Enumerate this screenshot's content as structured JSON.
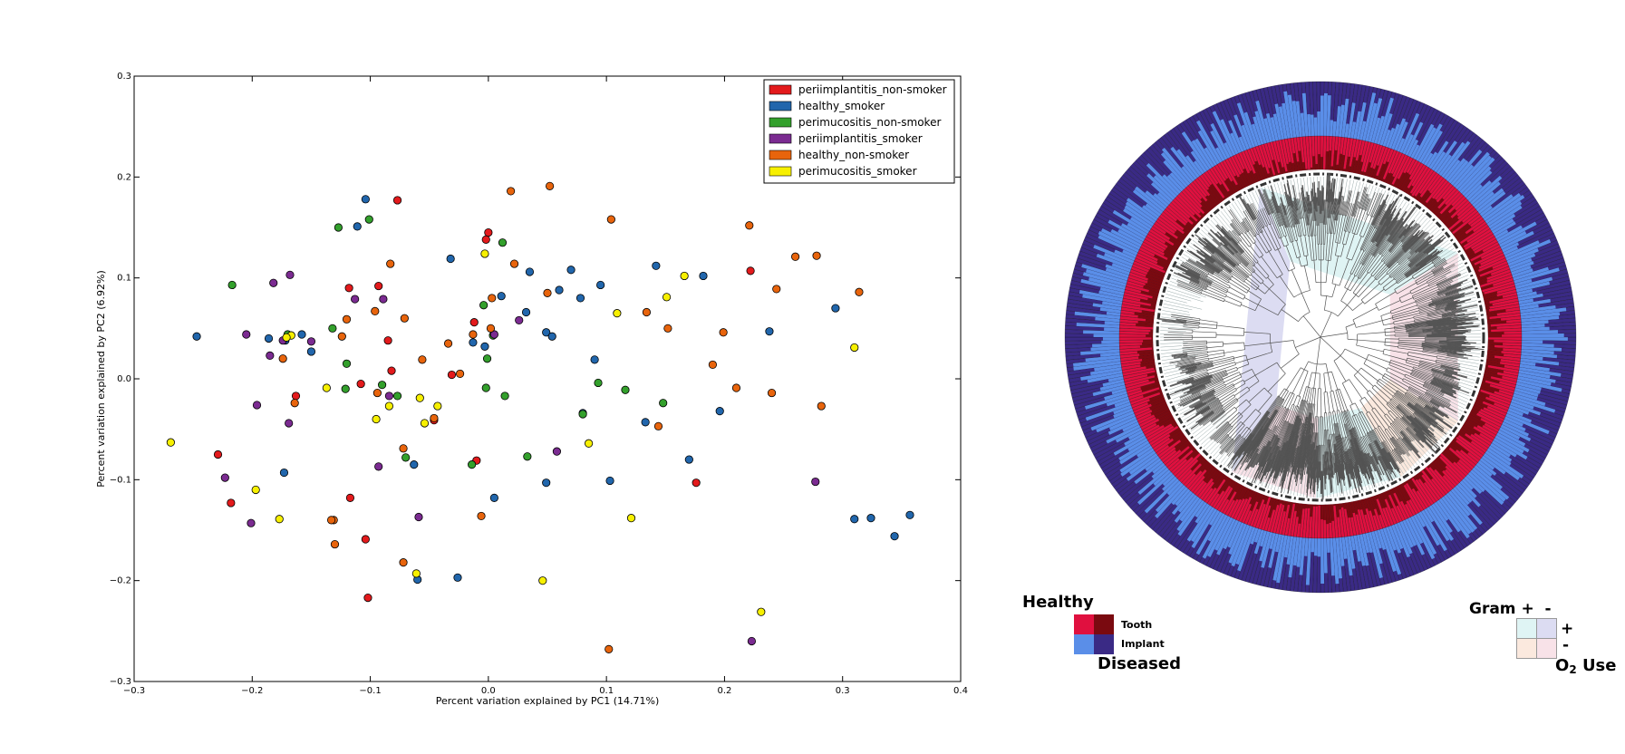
{
  "chart_data": {
    "type": "scatter",
    "xlabel": "Percent variation explained by PC1 (14.71%)",
    "ylabel": "Percent variation explained by PC2 (6.92%)",
    "xlim": [
      -0.3,
      0.4
    ],
    "ylim": [
      -0.3,
      0.3
    ],
    "xticks": [
      "−0.3",
      "−0.2",
      "−0.1",
      "0.0",
      "0.1",
      "0.2",
      "0.3",
      "0.4"
    ],
    "yticks": [
      "0.3",
      "0.2",
      "0.1",
      "0.0",
      "−0.1",
      "−0.2",
      "−0.3"
    ],
    "legend_position": "top-right",
    "series": [
      {
        "name": "periimplantitis_non-smoker",
        "color": "#e31a1c",
        "x": [
          -0.077,
          -0.118,
          -0.093,
          -0.085,
          -0.082,
          -0.108,
          -0.163,
          -0.229,
          -0.218,
          -0.117,
          -0.104,
          -0.102,
          -0.031,
          -0.046,
          -0.012,
          -0.01,
          -0.002,
          0.0,
          0.176,
          0.222
        ],
        "y": [
          0.177,
          0.09,
          0.092,
          0.038,
          0.008,
          -0.005,
          -0.017,
          -0.075,
          -0.123,
          -0.118,
          -0.159,
          -0.217,
          0.004,
          -0.041,
          0.056,
          -0.081,
          0.138,
          0.145,
          -0.103,
          0.107
        ]
      },
      {
        "name": "healthy_smoker",
        "color": "#2166ac",
        "x": [
          -0.247,
          -0.186,
          -0.172,
          -0.158,
          -0.15,
          -0.173,
          -0.111,
          -0.104,
          -0.032,
          -0.063,
          -0.06,
          -0.026,
          -0.013,
          -0.003,
          0.005,
          0.011,
          0.035,
          0.032,
          0.049,
          0.054,
          0.06,
          0.07,
          0.078,
          0.095,
          0.049,
          0.08,
          0.09,
          0.103,
          0.133,
          0.142,
          0.17,
          0.182,
          0.196,
          0.238,
          0.294,
          0.31,
          0.324,
          0.344,
          0.357
        ],
        "y": [
          0.042,
          0.04,
          0.038,
          0.044,
          0.027,
          -0.093,
          0.151,
          0.178,
          0.119,
          -0.085,
          -0.199,
          -0.197,
          0.036,
          0.032,
          -0.118,
          0.082,
          0.106,
          0.066,
          0.046,
          0.042,
          0.088,
          0.108,
          0.08,
          0.093,
          -0.103,
          -0.034,
          0.019,
          -0.101,
          -0.043,
          0.112,
          -0.08,
          0.102,
          -0.032,
          0.047,
          0.07,
          -0.139,
          -0.138,
          -0.156,
          -0.135
        ]
      },
      {
        "name": "perimucositis_non-smoker",
        "color": "#33a02c",
        "x": [
          -0.217,
          -0.17,
          -0.127,
          -0.132,
          -0.12,
          -0.121,
          -0.101,
          -0.077,
          -0.09,
          -0.07,
          -0.014,
          -0.004,
          -0.001,
          -0.002,
          0.004,
          0.012,
          0.014,
          0.033,
          0.08,
          0.093,
          0.116,
          0.148
        ],
        "y": [
          0.093,
          0.044,
          0.15,
          0.05,
          0.015,
          -0.01,
          0.158,
          -0.017,
          -0.006,
          -0.078,
          -0.085,
          0.073,
          0.02,
          -0.009,
          0.043,
          0.135,
          -0.017,
          -0.077,
          -0.035,
          -0.004,
          -0.011,
          -0.024
        ]
      },
      {
        "name": "periimplantitis_smoker",
        "color": "#7b2b91",
        "x": [
          -0.205,
          -0.185,
          -0.182,
          -0.168,
          -0.174,
          -0.196,
          -0.223,
          -0.201,
          -0.15,
          -0.169,
          -0.113,
          -0.089,
          -0.084,
          -0.093,
          -0.059,
          0.005,
          0.026,
          0.058,
          0.223,
          0.277
        ],
        "y": [
          0.044,
          0.023,
          0.095,
          0.103,
          0.038,
          -0.026,
          -0.098,
          -0.143,
          0.037,
          -0.044,
          0.079,
          0.079,
          -0.017,
          -0.087,
          -0.137,
          0.044,
          0.058,
          -0.072,
          -0.26,
          -0.102
        ]
      },
      {
        "name": "healthy_non-smoker",
        "color": "#e8640c",
        "x": [
          -0.174,
          -0.164,
          -0.131,
          -0.12,
          -0.124,
          -0.096,
          -0.083,
          -0.094,
          -0.071,
          -0.072,
          -0.13,
          -0.133,
          -0.072,
          -0.056,
          -0.046,
          -0.034,
          -0.024,
          -0.013,
          0.002,
          0.003,
          0.019,
          0.022,
          0.052,
          0.05,
          0.104,
          0.134,
          0.144,
          0.152,
          0.19,
          0.199,
          0.21,
          0.221,
          0.24,
          0.244,
          0.26,
          0.278,
          0.282,
          0.314,
          0.102,
          -0.006
        ],
        "y": [
          0.02,
          -0.024,
          -0.14,
          0.059,
          0.042,
          0.067,
          0.114,
          -0.014,
          0.06,
          -0.069,
          -0.164,
          -0.14,
          -0.182,
          0.019,
          -0.039,
          0.035,
          0.005,
          0.044,
          0.05,
          0.08,
          0.186,
          0.114,
          0.191,
          0.085,
          0.158,
          0.066,
          -0.047,
          0.05,
          0.014,
          0.046,
          -0.009,
          0.152,
          -0.014,
          0.089,
          0.121,
          0.122,
          -0.027,
          0.086,
          -0.268,
          -0.136
        ]
      },
      {
        "name": "perimucositis_smoker",
        "color": "#f7f000",
        "x": [
          -0.269,
          -0.197,
          -0.177,
          -0.167,
          -0.171,
          -0.137,
          -0.095,
          -0.084,
          -0.058,
          -0.054,
          -0.043,
          -0.061,
          -0.003,
          0.046,
          0.085,
          0.109,
          0.121,
          0.151,
          0.166,
          0.31,
          0.231
        ],
        "y": [
          -0.063,
          -0.11,
          -0.139,
          0.043,
          0.041,
          -0.009,
          -0.04,
          -0.027,
          -0.019,
          -0.044,
          -0.027,
          -0.193,
          0.124,
          -0.2,
          -0.064,
          0.065,
          -0.138,
          0.081,
          0.102,
          0.031,
          -0.231
        ]
      }
    ]
  },
  "tree_figure": {
    "healthy_label": "Healthy",
    "diseased_label": "Diseased",
    "tooth_label": "Tooth",
    "implant_label": "Implant",
    "gram_label": "Gram +  -",
    "plus_label": "+",
    "minus_label": "-",
    "o2_label": "O",
    "o2_subscript": "2",
    "o2_suffix": " Use",
    "colors": {
      "healthy_tooth": "#e0103f",
      "diseased_tooth": "#7a0a10",
      "healthy_implant": "#5a8ee8",
      "diseased_implant": "#3a2a85",
      "gram_pos_o2_pos": "#dff4f4",
      "gram_neg_o2_pos": "#dcdcf2",
      "gram_pos_o2_neg": "#fbe9de",
      "gram_neg_o2_neg": "#f8e2e8"
    }
  }
}
